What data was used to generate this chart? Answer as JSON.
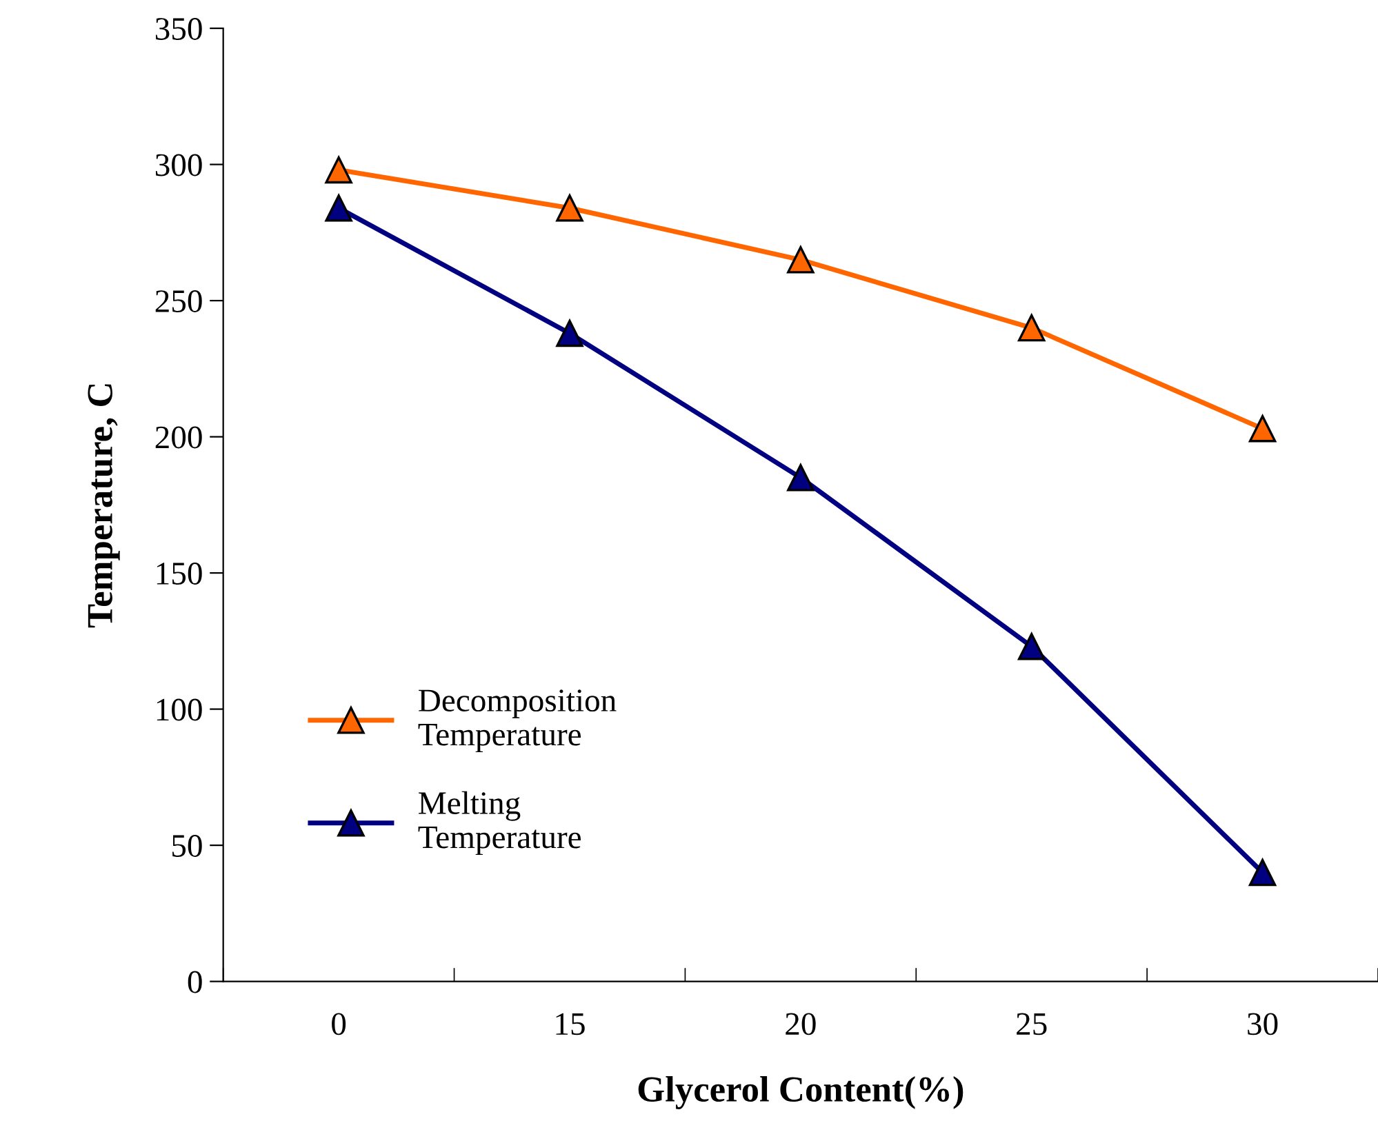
{
  "chart_data": {
    "type": "line",
    "xlabel": "Glycerol Content(%)",
    "ylabel": "Temperature, C",
    "categories": [
      "0",
      "15",
      "20",
      "25",
      "30"
    ],
    "series": [
      {
        "name": "Decomposition\nTemperature",
        "color": "#ff6600",
        "values": [
          298,
          284,
          265,
          240,
          203
        ]
      },
      {
        "name": "Melting\nTemperature",
        "color": "#000080",
        "values": [
          284,
          238,
          185,
          123,
          40
        ]
      }
    ],
    "ylim": [
      0,
      350
    ],
    "yticks": [
      0,
      50,
      100,
      150,
      200,
      250,
      300,
      350
    ],
    "grid": false,
    "legend": "left",
    "marker": "triangle",
    "line_style": "solid"
  }
}
